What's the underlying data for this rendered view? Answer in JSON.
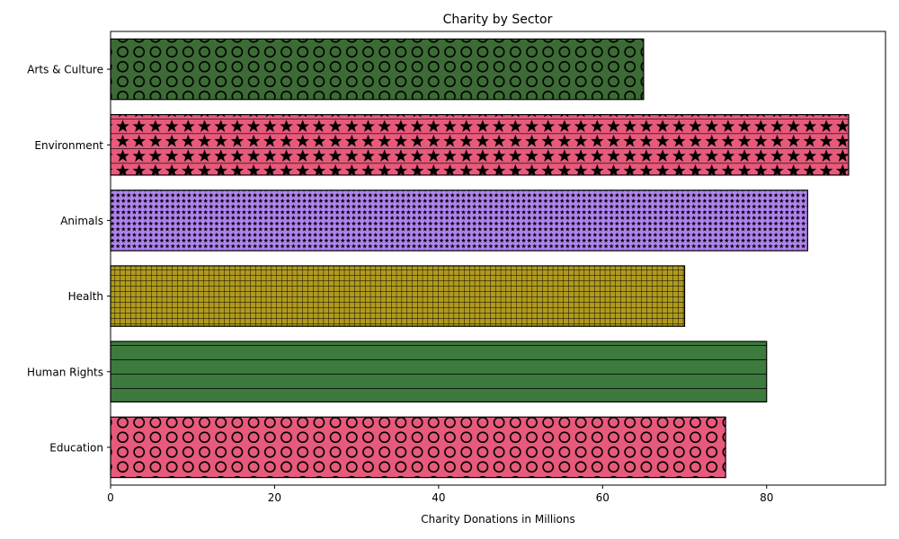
{
  "chart_data": {
    "type": "bar",
    "orientation": "horizontal",
    "title": "Charity by Sector",
    "xlabel": "Charity Donations in Millions",
    "ylabel": "",
    "xlim": [
      0,
      94.5
    ],
    "x_ticks": [
      0,
      20,
      40,
      60,
      80
    ],
    "grid": false,
    "categories": [
      "Education",
      "Human Rights",
      "Health",
      "Animals",
      "Environment",
      "Arts & Culture"
    ],
    "values": [
      75,
      80,
      70,
      85,
      90,
      65
    ],
    "colors": [
      "#e75a7c",
      "#3d7a3d",
      "#b09a1e",
      "#b284f0",
      "#e75a7c",
      "#3d6b35"
    ],
    "hatches": [
      "circles",
      "horizontal-lines",
      "grid",
      "small-stars",
      "stars",
      "circles"
    ]
  }
}
